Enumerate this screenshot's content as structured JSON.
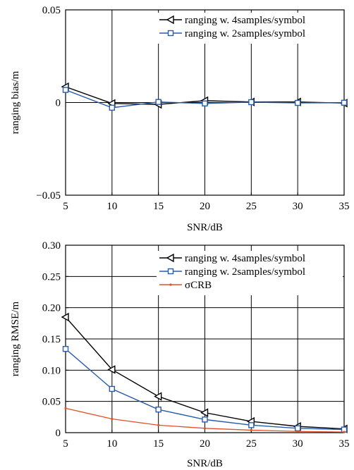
{
  "chart_data": [
    {
      "type": "line",
      "title": "",
      "xlabel": "SNR/dB",
      "ylabel": "ranging bias/m",
      "x": [
        5,
        10,
        15,
        20,
        25,
        30,
        35
      ],
      "xlim": [
        5,
        35
      ],
      "ylim": [
        -0.05,
        0.05
      ],
      "xticks": [
        5,
        10,
        15,
        20,
        25,
        30,
        35
      ],
      "yticks": [
        -0.05,
        0,
        0.05
      ],
      "ytick_labels": [
        "−0.05",
        "0",
        "0.05"
      ],
      "grid": "vertical",
      "legend_position": "top-right",
      "series": [
        {
          "name": "ranging w. 4samples/symbol",
          "color": "#000000",
          "marker": "triangle-left",
          "values": [
            0.0085,
            -0.0005,
            -0.001,
            0.001,
            0.0003,
            0.0003,
            -0.0003
          ]
        },
        {
          "name": "ranging w. 2samples/symbol",
          "color": "#2a5caa",
          "marker": "square",
          "values": [
            0.0068,
            -0.0028,
            0.0003,
            -0.0005,
            0.0002,
            -0.0002,
            -0.0001
          ]
        }
      ]
    },
    {
      "type": "line",
      "title": "",
      "xlabel": "SNR/dB",
      "ylabel": "ranging RMSE/m",
      "x": [
        5,
        10,
        15,
        20,
        25,
        30,
        35
      ],
      "xlim": [
        5,
        35
      ],
      "ylim": [
        0,
        0.3
      ],
      "xticks": [
        5,
        10,
        15,
        20,
        25,
        30,
        35
      ],
      "yticks": [
        0,
        0.05,
        0.1,
        0.15,
        0.2,
        0.25,
        0.3
      ],
      "ytick_labels": [
        "0",
        "0.05",
        "0.10",
        "0.15",
        "0.20",
        "0.25",
        "0.30"
      ],
      "grid": "both",
      "legend_position": "top-right",
      "series": [
        {
          "name": "ranging w. 4samples/symbol",
          "color": "#000000",
          "marker": "triangle-left",
          "values": [
            0.185,
            0.101,
            0.058,
            0.032,
            0.018,
            0.01,
            0.006
          ]
        },
        {
          "name": "ranging w. 2samples/symbol",
          "color": "#2a5caa",
          "marker": "square",
          "values": [
            0.134,
            0.07,
            0.037,
            0.021,
            0.012,
            0.007,
            0.005
          ]
        },
        {
          "name": "σCRB",
          "color": "#e0502a",
          "marker": "dot",
          "values": [
            0.039,
            0.022,
            0.012,
            0.007,
            0.004,
            0.002,
            0.001
          ]
        }
      ]
    }
  ]
}
